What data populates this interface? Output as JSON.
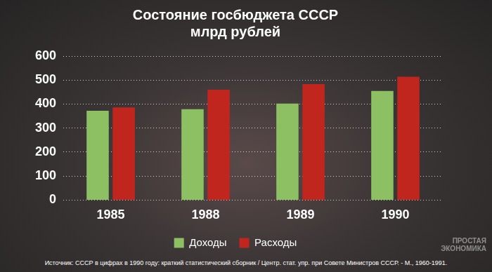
{
  "chart_data": {
    "type": "bar",
    "title": "Состояние госбюджета СССР",
    "subtitle": "млрд рублей",
    "categories": [
      "1985",
      "1988",
      "1989",
      "1990"
    ],
    "series": [
      {
        "name": "Доходы",
        "color": "#8dc063",
        "values": [
          372,
          379,
          402,
          455
        ]
      },
      {
        "name": "Расходы",
        "color": "#c1261e",
        "values": [
          386,
          460,
          483,
          514
        ]
      }
    ],
    "ylim": [
      0,
      600
    ],
    "yticks": [
      0,
      100,
      200,
      300,
      400,
      500,
      600
    ],
    "grid": true,
    "legend": "bottom",
    "annotations": [
      "Источник: СССР в цифрах в 1990 году: краткий статистический сборник / Центр. стат. упр. при Совете Министров СССР. - М., 1960-1991.",
      "ПРОСТАЯ ЭКОНОМИКА"
    ]
  }
}
